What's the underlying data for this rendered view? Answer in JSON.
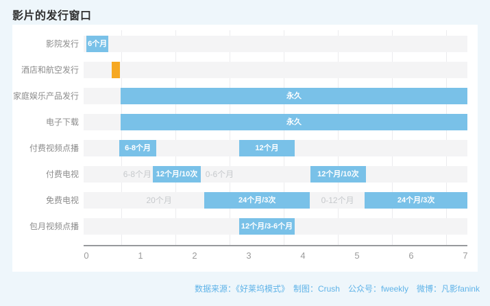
{
  "title": "影片的发行窗口",
  "footer": {
    "text": "数据来源：《好莱坞模式》　制图：Crush　公众号：fweekly　微博：凡影fanink"
  },
  "colors": {
    "bar_blue": "#79c1e8",
    "bar_orange": "#f6a822",
    "track": "#f4f4f5",
    "grid": "#ebebee",
    "axis_line": "#97999c",
    "label": "#8b8b8b",
    "muted_text": "#c6c9cc",
    "tick": "#9b9b9b",
    "title": "#2f2f2f",
    "footer": "#5fb3e8",
    "page_bg": "#eef6fb",
    "card_bg": "#ffffff"
  },
  "chart_data": {
    "type": "bar",
    "subtype": "gantt-timeline",
    "title": "影片的发行窗口",
    "xlabel": "",
    "ylabel": "",
    "x_axis": {
      "min": 0,
      "max": 7.08,
      "ticks": [
        "0",
        "1",
        "2",
        "3",
        "4",
        "5",
        "6",
        "7"
      ]
    },
    "grid": true,
    "legend": "none",
    "rows": [
      {
        "label": "影院发行",
        "segments": [
          {
            "kind": "bar",
            "color": "blue",
            "start": 0.0,
            "end": 0.41,
            "label": "6个月"
          }
        ]
      },
      {
        "label": "酒店和航空发行",
        "segments": [
          {
            "kind": "bar",
            "color": "orange",
            "start": 0.47,
            "end": 0.62,
            "label": ""
          }
        ]
      },
      {
        "label": "家庭娱乐产品发行",
        "segments": [
          {
            "kind": "bar",
            "color": "blue",
            "start": 0.63,
            "end": 7.04,
            "label": "永久"
          }
        ]
      },
      {
        "label": "电子下载",
        "segments": [
          {
            "kind": "bar",
            "color": "blue",
            "start": 0.63,
            "end": 7.04,
            "label": "永久"
          }
        ]
      },
      {
        "label": "付费视频点播",
        "segments": [
          {
            "kind": "bar",
            "color": "blue",
            "start": 0.61,
            "end": 1.29,
            "label": "6-8个月"
          },
          {
            "kind": "bar",
            "color": "blue",
            "start": 2.82,
            "end": 3.85,
            "label": "12个月"
          }
        ]
      },
      {
        "label": "付费电视",
        "segments": [
          {
            "kind": "text",
            "start": 0.68,
            "end": 1.16,
            "label": "6-8个月"
          },
          {
            "kind": "bar",
            "color": "blue",
            "start": 1.23,
            "end": 2.11,
            "label": "12个月/10次"
          },
          {
            "kind": "text",
            "start": 2.2,
            "end": 2.72,
            "label": "0-6个月"
          },
          {
            "kind": "bar",
            "color": "blue",
            "start": 4.14,
            "end": 5.16,
            "label": "12个月/10次"
          }
        ]
      },
      {
        "label": "免费电视",
        "segments": [
          {
            "kind": "text",
            "start": 1.06,
            "end": 1.63,
            "label": "20个月"
          },
          {
            "kind": "bar",
            "color": "blue",
            "start": 2.18,
            "end": 4.13,
            "label": "24个月/3次"
          },
          {
            "kind": "text",
            "start": 4.23,
            "end": 5.05,
            "label": "0-12个月"
          },
          {
            "kind": "bar",
            "color": "blue",
            "start": 5.14,
            "end": 7.04,
            "label": "24个月/3次"
          }
        ]
      },
      {
        "label": "包月视频点播",
        "segments": [
          {
            "kind": "bar",
            "color": "blue",
            "start": 2.82,
            "end": 3.85,
            "label": "12个月/3-6个月"
          }
        ]
      }
    ]
  }
}
